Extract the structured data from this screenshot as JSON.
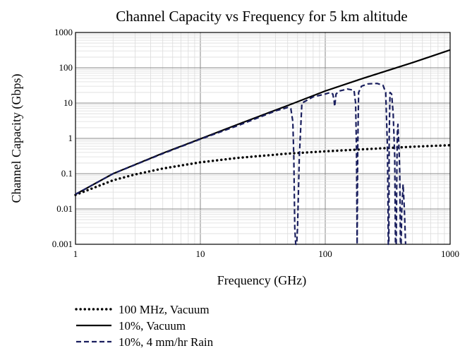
{
  "chart_data": {
    "type": "line",
    "title": "Channel Capacity vs Frequency for 5 km altitude",
    "xlabel": "Frequency (GHz)",
    "ylabel": "Channel Capacity (Gbps)",
    "x_scale": "log",
    "y_scale": "log",
    "xlim": [
      1,
      1000
    ],
    "ylim": [
      0.001,
      1000
    ],
    "x_ticks": [
      "1",
      "10",
      "100",
      "1000"
    ],
    "y_ticks": [
      "0.001",
      "0.01",
      "0.1",
      "1",
      "10",
      "100",
      "1000"
    ],
    "grid": true,
    "legend_position": "below",
    "series": [
      {
        "name": "100 MHz, Vacuum",
        "style": "dotted",
        "color": "#000000",
        "x": [
          1,
          2,
          3,
          5,
          10,
          20,
          50,
          100,
          200,
          500,
          1000
        ],
        "y": [
          0.025,
          0.065,
          0.095,
          0.14,
          0.21,
          0.28,
          0.37,
          0.43,
          0.49,
          0.58,
          0.64
        ]
      },
      {
        "name": "10%, Vacuum",
        "style": "solid",
        "color": "#000000",
        "x": [
          1,
          2,
          5,
          10,
          20,
          50,
          100,
          200,
          500,
          1000
        ],
        "y": [
          0.026,
          0.1,
          0.38,
          0.97,
          2.5,
          8.5,
          22,
          50,
          140,
          320
        ]
      },
      {
        "name": "10%, 4 mm/hr Rain",
        "style": "dashed",
        "color": "#1a1f5e",
        "x": [
          1,
          2,
          5,
          10,
          20,
          40,
          50,
          53,
          55,
          56,
          57,
          58,
          59,
          60,
          62,
          65,
          80,
          100,
          110,
          115,
          118,
          119,
          122,
          130,
          150,
          170,
          175,
          178,
          180,
          182,
          185,
          195,
          220,
          260,
          290,
          305,
          315,
          320,
          323,
          325,
          330,
          340,
          350,
          360,
          365,
          370,
          375,
          378,
          382,
          386,
          390,
          395,
          400,
          405,
          410,
          420,
          430,
          440
        ],
        "y": [
          0.026,
          0.1,
          0.37,
          0.95,
          2.3,
          6.0,
          7.5,
          7.0,
          3.0,
          0.3,
          0.003,
          0.001,
          0.001,
          0.003,
          0.3,
          10,
          15,
          18,
          20,
          18,
          11,
          8,
          18,
          22,
          25,
          23,
          10,
          0.4,
          0.001,
          0.5,
          20,
          30,
          35,
          36,
          32,
          20,
          0.5,
          0.001,
          0.001,
          1.0,
          20,
          18,
          5,
          0.3,
          0.001,
          0.001,
          0.2,
          1.5,
          2.5,
          1.0,
          0.5,
          0.1,
          0.001,
          0.001,
          0.01,
          0.05,
          0.01,
          0.001
        ]
      }
    ]
  }
}
